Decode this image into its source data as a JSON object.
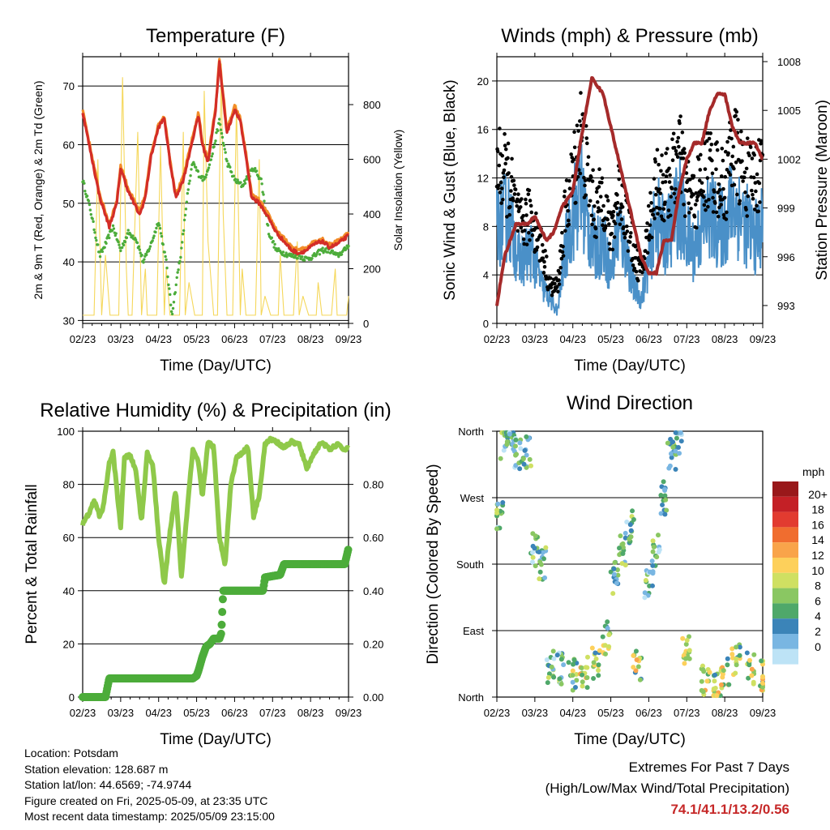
{
  "panels": {
    "temperature": {
      "title": "Temperature (F)",
      "ylabel": "2m & 9m T (Red, Orange) & 2m Td (Green)",
      "y2label": "Solar Insolation (Yellow)",
      "xlabel": "Time (Day/UTC)"
    },
    "wind": {
      "title": "Winds (mph) & Pressure (mb)",
      "ylabel": "Sonic Wind & Gust (Blue, Black)",
      "y2label": "Station Pressure (Maroon)",
      "xlabel": "Time (Day/UTC)"
    },
    "humidity": {
      "title": "Relative Humidity (%) & Precipitation (in)",
      "ylabel": "Percent & Total Rainfall",
      "xlabel": "Time (Day/UTC)"
    },
    "direction": {
      "title": "Wind Direction",
      "ylabel": "Direction (Colored By Speed)",
      "xlabel": "Time (Day/UTC)"
    }
  },
  "info": {
    "location": "Location: Potsdam",
    "elevation": "Station elevation: 128.687 m",
    "latlon": "Station lat/lon: 44.6569; -74.9744",
    "created": "Figure created on Fri, 2025-05-09, at 23:35 UTC",
    "latest": "Most recent data timestamp: 2025/05/09 23:15:00"
  },
  "extremes": {
    "heading": "Extremes For Past 7 Days",
    "subheading": "(High/Low/Max Wind/Total Precipitation)",
    "values": "74.1/41.1/13.2/0.56"
  },
  "chart_data": [
    {
      "type": "line",
      "title": "Temperature (F)",
      "xlabel": "Time (Day/UTC)",
      "ylabel": "2m & 9m T (Red, Orange) & 2m Td (Green)",
      "y2label": "Solar Insolation (Yellow)",
      "x_ticks": [
        "02/23",
        "03/23",
        "04/23",
        "05/23",
        "06/23",
        "07/23",
        "08/23",
        "09/23"
      ],
      "y_ticks": [
        30,
        40,
        50,
        60,
        70
      ],
      "y2_ticks": [
        0,
        200,
        400,
        600,
        800
      ],
      "ylim": [
        29.5,
        75
      ],
      "y2lim": [
        0,
        975
      ],
      "grid": true,
      "series": [
        {
          "color": "#f5d75a",
          "axis": "y2",
          "x": [
            0,
            0.15,
            0.3,
            0.4,
            0.5,
            0.6,
            0.72,
            0.8,
            0.95,
            1.05,
            1.15,
            1.2,
            1.3,
            1.45,
            1.55,
            1.65,
            1.7,
            1.8,
            1.95,
            2.05,
            2.15,
            2.2,
            2.3,
            2.45,
            2.55,
            2.65,
            2.7,
            2.8,
            2.95,
            3.05,
            3.15,
            3.2,
            3.3,
            3.45,
            3.55,
            3.65,
            3.7,
            3.8,
            3.95,
            4.05,
            4.15,
            4.2,
            4.3,
            4.45,
            4.55,
            4.65,
            4.7,
            4.8,
            4.95,
            5.05,
            5.15,
            5.2,
            5.3,
            5.45,
            5.55,
            5.65,
            5.7,
            5.8,
            5.95,
            6.05,
            6.15,
            6.2,
            6.3,
            6.45,
            6.55,
            6.65,
            6.7,
            6.8,
            6.95,
            7.0
          ],
          "y": [
            30,
            30,
            30,
            600,
            30,
            250,
            30,
            30,
            30,
            900,
            200,
            30,
            30,
            700,
            30,
            200,
            30,
            30,
            30,
            650,
            30,
            200,
            30,
            30,
            30,
            700,
            30,
            150,
            30,
            30,
            30,
            850,
            300,
            30,
            30,
            950,
            400,
            30,
            30,
            800,
            30,
            200,
            30,
            30,
            30,
            600,
            30,
            100,
            30,
            30,
            30,
            250,
            30,
            30,
            30,
            300,
            30,
            100,
            30,
            30,
            30,
            150,
            30,
            30,
            30,
            200,
            30,
            30,
            30,
            100
          ]
        },
        {
          "color": "#f28c28",
          "axis": "y",
          "x": [
            0,
            0.2,
            0.45,
            0.7,
            0.9,
            1.0,
            1.2,
            1.5,
            1.65,
            1.8,
            2.0,
            2.15,
            2.3,
            2.45,
            2.65,
            2.9,
            3.05,
            3.15,
            3.3,
            3.5,
            3.6,
            3.7,
            3.8,
            4.0,
            4.15,
            4.3,
            4.45,
            4.65,
            4.85,
            5.1,
            5.3,
            5.5,
            5.7,
            5.9,
            6.1,
            6.3,
            6.5,
            6.7,
            6.9,
            7.0
          ],
          "y": [
            65.5,
            59,
            51,
            46,
            50,
            56,
            52,
            48,
            51,
            58,
            63,
            64.5,
            57,
            51,
            54,
            61,
            65,
            60,
            57,
            66,
            74,
            68,
            62,
            66,
            64,
            58,
            51,
            50,
            48,
            45,
            43.5,
            42,
            41.5,
            42,
            43,
            43.5,
            42.5,
            43,
            44,
            44.5
          ]
        },
        {
          "color": "#d32d27",
          "axis": "y",
          "x": [
            0,
            0.2,
            0.45,
            0.7,
            0.9,
            1.0,
            1.2,
            1.5,
            1.65,
            1.8,
            2.0,
            2.15,
            2.3,
            2.45,
            2.65,
            2.9,
            3.05,
            3.15,
            3.3,
            3.5,
            3.6,
            3.7,
            3.8,
            4.0,
            4.15,
            4.3,
            4.45,
            4.65,
            4.85,
            5.1,
            5.3,
            5.5,
            5.7,
            5.9,
            6.1,
            6.3,
            6.5,
            6.7,
            6.9,
            7.0
          ],
          "y": [
            65.5,
            59,
            51,
            46,
            50,
            56,
            52,
            48,
            51,
            58,
            63,
            64.5,
            57,
            51,
            54,
            61,
            65,
            60,
            57,
            66,
            74,
            68,
            62,
            66,
            64,
            58,
            51,
            50,
            48,
            45,
            43.5,
            42,
            41.5,
            42,
            43,
            43.5,
            42.5,
            43,
            44,
            44.5
          ]
        },
        {
          "color": "#4cac3a",
          "axis": "y",
          "x": [
            0,
            0.2,
            0.45,
            0.6,
            0.8,
            1.0,
            1.2,
            1.4,
            1.6,
            1.8,
            2.0,
            2.2,
            2.35,
            2.5,
            2.6,
            2.75,
            2.9,
            3.05,
            3.2,
            3.4,
            3.5,
            3.6,
            3.8,
            4.0,
            4.2,
            4.5,
            4.7,
            4.9,
            5.1,
            5.3,
            5.5,
            5.7,
            5.9,
            6.1,
            6.3,
            6.5,
            6.7,
            6.9,
            7.0
          ],
          "y": [
            54,
            49,
            41,
            43,
            46,
            42,
            45,
            44,
            40,
            43,
            47,
            40,
            31,
            38,
            42,
            51,
            57,
            55,
            54,
            58,
            61,
            64,
            57,
            54,
            53,
            56,
            54,
            45,
            42,
            41.5,
            41,
            41,
            40.5,
            41,
            42,
            42,
            41,
            42,
            43
          ]
        }
      ]
    },
    {
      "type": "line",
      "title": "Winds (mph) & Pressure (mb)",
      "xlabel": "Time (Day/UTC)",
      "ylabel": "Sonic Wind & Gust (Blue, Black)",
      "y2label": "Station Pressure (Maroon)",
      "x_ticks": [
        "02/23",
        "03/23",
        "04/23",
        "05/23",
        "06/23",
        "07/23",
        "08/23",
        "09/23"
      ],
      "y_ticks": [
        0,
        4,
        8,
        12,
        16,
        20
      ],
      "y2_ticks": [
        993,
        996,
        999,
        1002,
        1005,
        1008
      ],
      "ylim": [
        0,
        22
      ],
      "y2lim": [
        991.9,
        1008.3
      ],
      "grid": true,
      "series": [
        {
          "name": "",
          "color": "#4a90c8",
          "axis": "y",
          "x": [
            0,
            0.3,
            0.6,
            0.9,
            1.2,
            1.4,
            1.6,
            1.8,
            2.0,
            2.2,
            2.4,
            2.6,
            2.8,
            3.0,
            3.2,
            3.4,
            3.6,
            3.8,
            4.0,
            4.2,
            4.4,
            4.6,
            4.8,
            5.0,
            5.2,
            5.4,
            5.6,
            5.8,
            6.0,
            6.2,
            6.4,
            6.6,
            6.8,
            7.0
          ],
          "y": [
            8,
            9,
            5,
            6,
            3,
            2,
            1,
            6,
            9,
            11,
            8,
            6,
            7,
            4,
            8,
            6,
            3,
            2,
            5,
            9,
            7,
            8,
            10,
            7,
            6,
            8,
            9,
            8,
            8,
            10,
            9,
            8,
            7,
            8
          ]
        },
        {
          "name": "",
          "color": "#000000",
          "axis": "y",
          "x": [
            0,
            0.3,
            0.6,
            0.9,
            1.2,
            1.4,
            1.6,
            1.8,
            2.0,
            2.2,
            2.4,
            2.6,
            2.8,
            3.0,
            3.2,
            3.4,
            3.6,
            3.8,
            4.0,
            4.2,
            4.4,
            4.6,
            4.8,
            5.0,
            5.2,
            5.4,
            5.6,
            5.8,
            6.0,
            6.2,
            6.4,
            6.6,
            6.8,
            7.0
          ],
          "y": [
            13,
            12,
            8,
            9,
            6,
            3,
            3,
            9,
            12,
            16,
            12,
            9,
            11,
            7,
            11,
            9,
            6,
            4,
            8,
            12,
            11,
            12,
            14,
            11,
            10,
            12,
            13,
            12,
            11,
            15,
            13,
            12,
            12,
            13
          ]
        },
        {
          "name": "",
          "color": "#a52a2a",
          "axis": "y2",
          "x": [
            0,
            0.2,
            0.5,
            0.8,
            1.0,
            1.3,
            1.5,
            1.7,
            2.0,
            2.2,
            2.5,
            2.8,
            3.0,
            3.2,
            3.4,
            3.6,
            3.8,
            4.0,
            4.2,
            4.4,
            4.6,
            4.8,
            5.0,
            5.2,
            5.4,
            5.6,
            5.8,
            6.0,
            6.2,
            6.4,
            6.6,
            6.8,
            7.0
          ],
          "y": [
            993,
            996,
            998,
            998,
            998.5,
            997,
            997.5,
            999,
            1000,
            1003,
            1007,
            1006,
            1004,
            1002,
            1000,
            998,
            996,
            995,
            995,
            997,
            997,
            1000,
            1002,
            1003,
            1003,
            1005,
            1006,
            1006,
            1004,
            1003,
            1003,
            1003,
            1002
          ]
        }
      ]
    },
    {
      "type": "line",
      "title": "Relative Humidity (%) & Precipitation (in)",
      "xlabel": "Time (Day/UTC)",
      "ylabel": "Percent & Total Rainfall",
      "x_ticks": [
        "02/23",
        "03/23",
        "04/23",
        "05/23",
        "06/23",
        "07/23",
        "08/23",
        "09/23"
      ],
      "y_ticks": [
        0,
        20,
        40,
        60,
        80,
        100
      ],
      "y2_ticks": [
        "0.00",
        "0.20",
        "0.40",
        "0.60",
        "0.80"
      ],
      "ylim": [
        0,
        100
      ],
      "y2lim": [
        0,
        1
      ],
      "grid": true,
      "series": [
        {
          "color": "#8fc94a",
          "axis": "y",
          "x": [
            0,
            0.2,
            0.3,
            0.45,
            0.55,
            0.7,
            0.8,
            0.9,
            1.0,
            1.1,
            1.25,
            1.4,
            1.55,
            1.7,
            1.85,
            2.0,
            2.15,
            2.3,
            2.45,
            2.6,
            2.75,
            2.9,
            3.05,
            3.15,
            3.3,
            3.45,
            3.6,
            3.75,
            3.9,
            4.05,
            4.2,
            4.35,
            4.5,
            4.65,
            4.8,
            4.95,
            5.1,
            5.3,
            5.5,
            5.7,
            5.9,
            6.1,
            6.3,
            6.5,
            6.7,
            6.9,
            7.0
          ],
          "y": [
            65,
            70,
            74,
            68,
            72,
            88,
            92,
            78,
            64,
            90,
            91,
            85,
            66,
            92,
            87,
            60,
            42,
            62,
            78,
            45,
            70,
            93,
            88,
            75,
            96,
            94,
            60,
            50,
            80,
            90,
            92,
            94,
            68,
            76,
            95,
            97,
            96,
            94,
            96,
            95,
            86,
            92,
            96,
            93,
            95,
            93,
            94
          ]
        },
        {
          "color": "#4cac3a",
          "axis": "y2",
          "x": [
            0,
            0.6,
            0.7,
            2.9,
            3.0,
            3.05,
            3.15,
            3.25,
            3.35,
            3.4,
            3.45,
            3.6,
            3.65,
            3.7,
            4.6,
            4.75,
            4.8,
            5.2,
            5.3,
            6.9,
            7.0
          ],
          "y": [
            0,
            0,
            0.07,
            0.07,
            0.08,
            0.1,
            0.15,
            0.19,
            0.2,
            0.21,
            0.22,
            0.22,
            0.24,
            0.4,
            0.4,
            0.4,
            0.45,
            0.46,
            0.5,
            0.5,
            0.56
          ]
        }
      ]
    },
    {
      "type": "scatter",
      "title": "Wind Direction",
      "xlabel": "Time (Day/UTC)",
      "ylabel": "Direction (Colored By Speed)",
      "x_ticks": [
        "02/23",
        "03/23",
        "04/23",
        "05/23",
        "06/23",
        "07/23",
        "08/23",
        "09/23"
      ],
      "y_ticks": [
        "North",
        "East",
        "South",
        "West",
        "North"
      ],
      "ylim": [
        0,
        360
      ],
      "grid": true,
      "colorbar": {
        "title": "mph",
        "labels": [
          "20+",
          "18",
          "16",
          "14",
          "12",
          "10",
          "8",
          "6",
          "4",
          "2",
          "0"
        ],
        "colors": [
          "#99181a",
          "#c42026",
          "#e23b30",
          "#f06d2f",
          "#f9a44a",
          "#fdd05b",
          "#cfe062",
          "#8ac762",
          "#4fa86a",
          "#3b84b8",
          "#79b6e2",
          "#bde3f6"
        ]
      },
      "points_sample": [
        {
          "x": 0.05,
          "y": 245
        },
        {
          "x": 0.2,
          "y": 345
        },
        {
          "x": 0.35,
          "y": 350
        },
        {
          "x": 0.55,
          "y": 330
        },
        {
          "x": 0.8,
          "y": 330
        },
        {
          "x": 1.0,
          "y": 200
        },
        {
          "x": 1.2,
          "y": 180
        },
        {
          "x": 1.4,
          "y": 40
        },
        {
          "x": 1.7,
          "y": 40
        },
        {
          "x": 2.0,
          "y": 30
        },
        {
          "x": 2.3,
          "y": 35
        },
        {
          "x": 2.6,
          "y": 45
        },
        {
          "x": 2.9,
          "y": 80
        },
        {
          "x": 3.1,
          "y": 160
        },
        {
          "x": 3.3,
          "y": 200
        },
        {
          "x": 3.5,
          "y": 230
        },
        {
          "x": 3.7,
          "y": 40
        },
        {
          "x": 4.0,
          "y": 150
        },
        {
          "x": 4.2,
          "y": 200
        },
        {
          "x": 4.4,
          "y": 270
        },
        {
          "x": 4.6,
          "y": 330
        },
        {
          "x": 4.8,
          "y": 350
        },
        {
          "x": 5.0,
          "y": 60
        },
        {
          "x": 5.5,
          "y": 20
        },
        {
          "x": 5.8,
          "y": 10
        },
        {
          "x": 6.0,
          "y": 30
        },
        {
          "x": 6.3,
          "y": 50
        },
        {
          "x": 6.7,
          "y": 40
        },
        {
          "x": 7.0,
          "y": 30
        }
      ]
    }
  ]
}
